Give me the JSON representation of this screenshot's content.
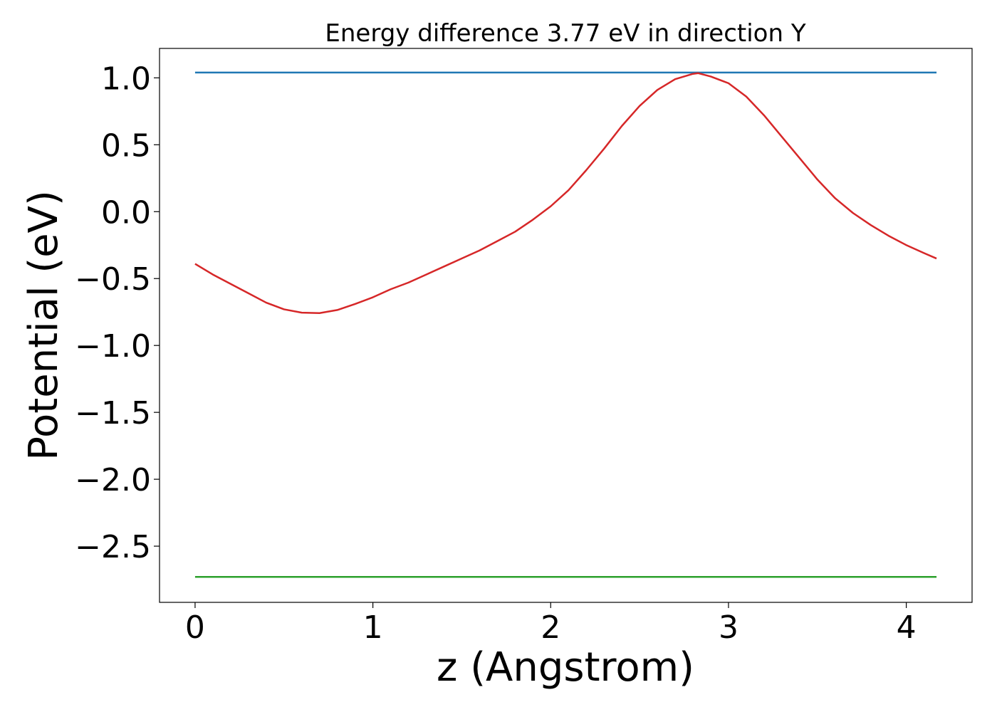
{
  "chart_data": {
    "type": "line",
    "title": "Energy difference 3.77 eV in direction Y",
    "xlabel": "z (Angstrom)",
    "ylabel": "Potential (eV)",
    "xlim": [
      -0.2,
      4.37
    ],
    "ylim": [
      -2.92,
      1.22
    ],
    "xticks": [
      0,
      1,
      2,
      3,
      4
    ],
    "xtick_labels": [
      "0",
      "1",
      "2",
      "3",
      "4"
    ],
    "yticks": [
      1.0,
      0.5,
      0.0,
      -0.5,
      -1.0,
      -1.5,
      -2.0,
      -2.5
    ],
    "ytick_labels": [
      "1.0",
      "0.5",
      "0.0",
      "−0.5",
      "−1.0",
      "−1.5",
      "−2.0",
      "−2.5"
    ],
    "grid": false,
    "series": [
      {
        "color": "#1f77b4",
        "x": [
          0,
          4.17
        ],
        "y": [
          1.04,
          1.04
        ]
      },
      {
        "color": "#2ca02c",
        "x": [
          0,
          4.17
        ],
        "y": [
          -2.73,
          -2.73
        ]
      },
      {
        "color": "#d62728",
        "x": [
          0,
          0.1,
          0.2,
          0.3,
          0.4,
          0.5,
          0.6,
          0.7,
          0.8,
          0.9,
          1.0,
          1.1,
          1.2,
          1.3,
          1.4,
          1.5,
          1.6,
          1.7,
          1.8,
          1.9,
          2.0,
          2.1,
          2.2,
          2.3,
          2.4,
          2.5,
          2.6,
          2.7,
          2.8,
          2.83,
          2.9,
          3.0,
          3.1,
          3.2,
          3.3,
          3.4,
          3.5,
          3.6,
          3.7,
          3.8,
          3.9,
          4.0,
          4.1,
          4.17
        ],
        "y": [
          -0.39,
          -0.47,
          -0.54,
          -0.61,
          -0.68,
          -0.73,
          -0.755,
          -0.758,
          -0.735,
          -0.69,
          -0.64,
          -0.58,
          -0.53,
          -0.47,
          -0.41,
          -0.35,
          -0.29,
          -0.22,
          -0.15,
          -0.06,
          0.04,
          0.16,
          0.31,
          0.47,
          0.64,
          0.79,
          0.91,
          0.99,
          1.03,
          1.035,
          1.01,
          0.96,
          0.86,
          0.72,
          0.56,
          0.4,
          0.24,
          0.1,
          -0.01,
          -0.1,
          -0.18,
          -0.25,
          -0.31,
          -0.35
        ]
      }
    ]
  }
}
